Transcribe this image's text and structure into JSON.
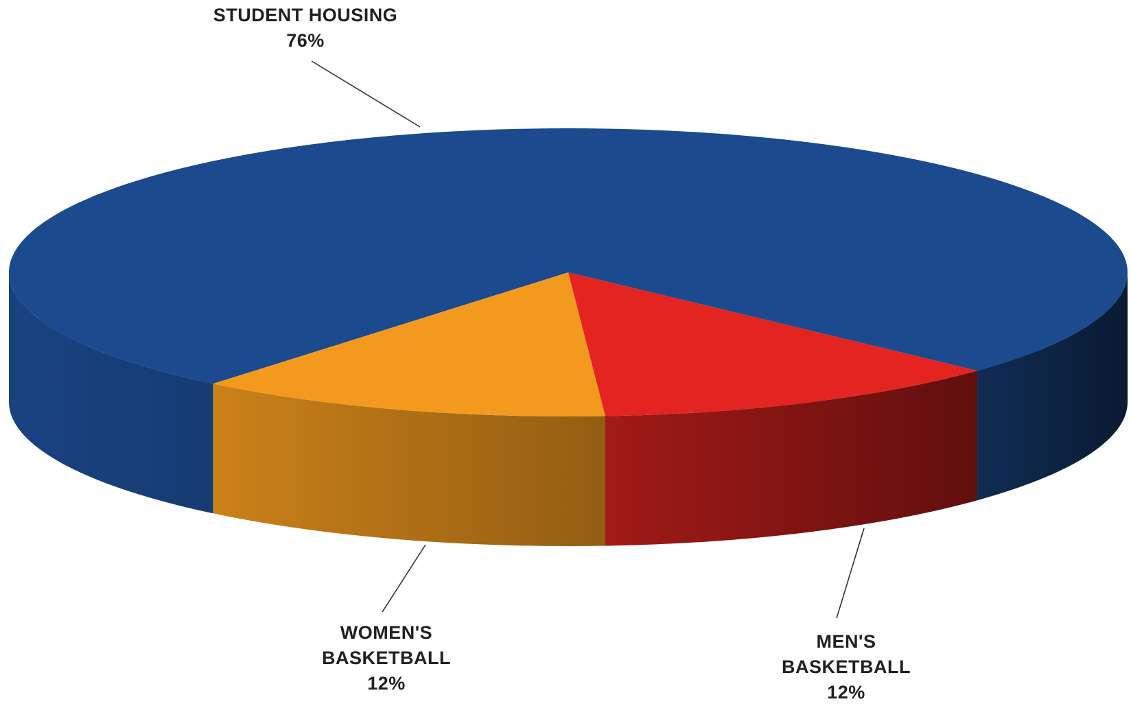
{
  "chart_data": {
    "type": "pie3d",
    "categories": [
      "STUDENT HOUSING",
      "WOMEN'S BASKETBALL",
      "MEN'S BASKETBALL"
    ],
    "values": [
      76,
      12,
      12
    ],
    "value_labels": [
      "76%",
      "12%",
      "12%"
    ],
    "colors": [
      "#1b4a8f",
      "#f39a1e",
      "#e32420"
    ]
  }
}
